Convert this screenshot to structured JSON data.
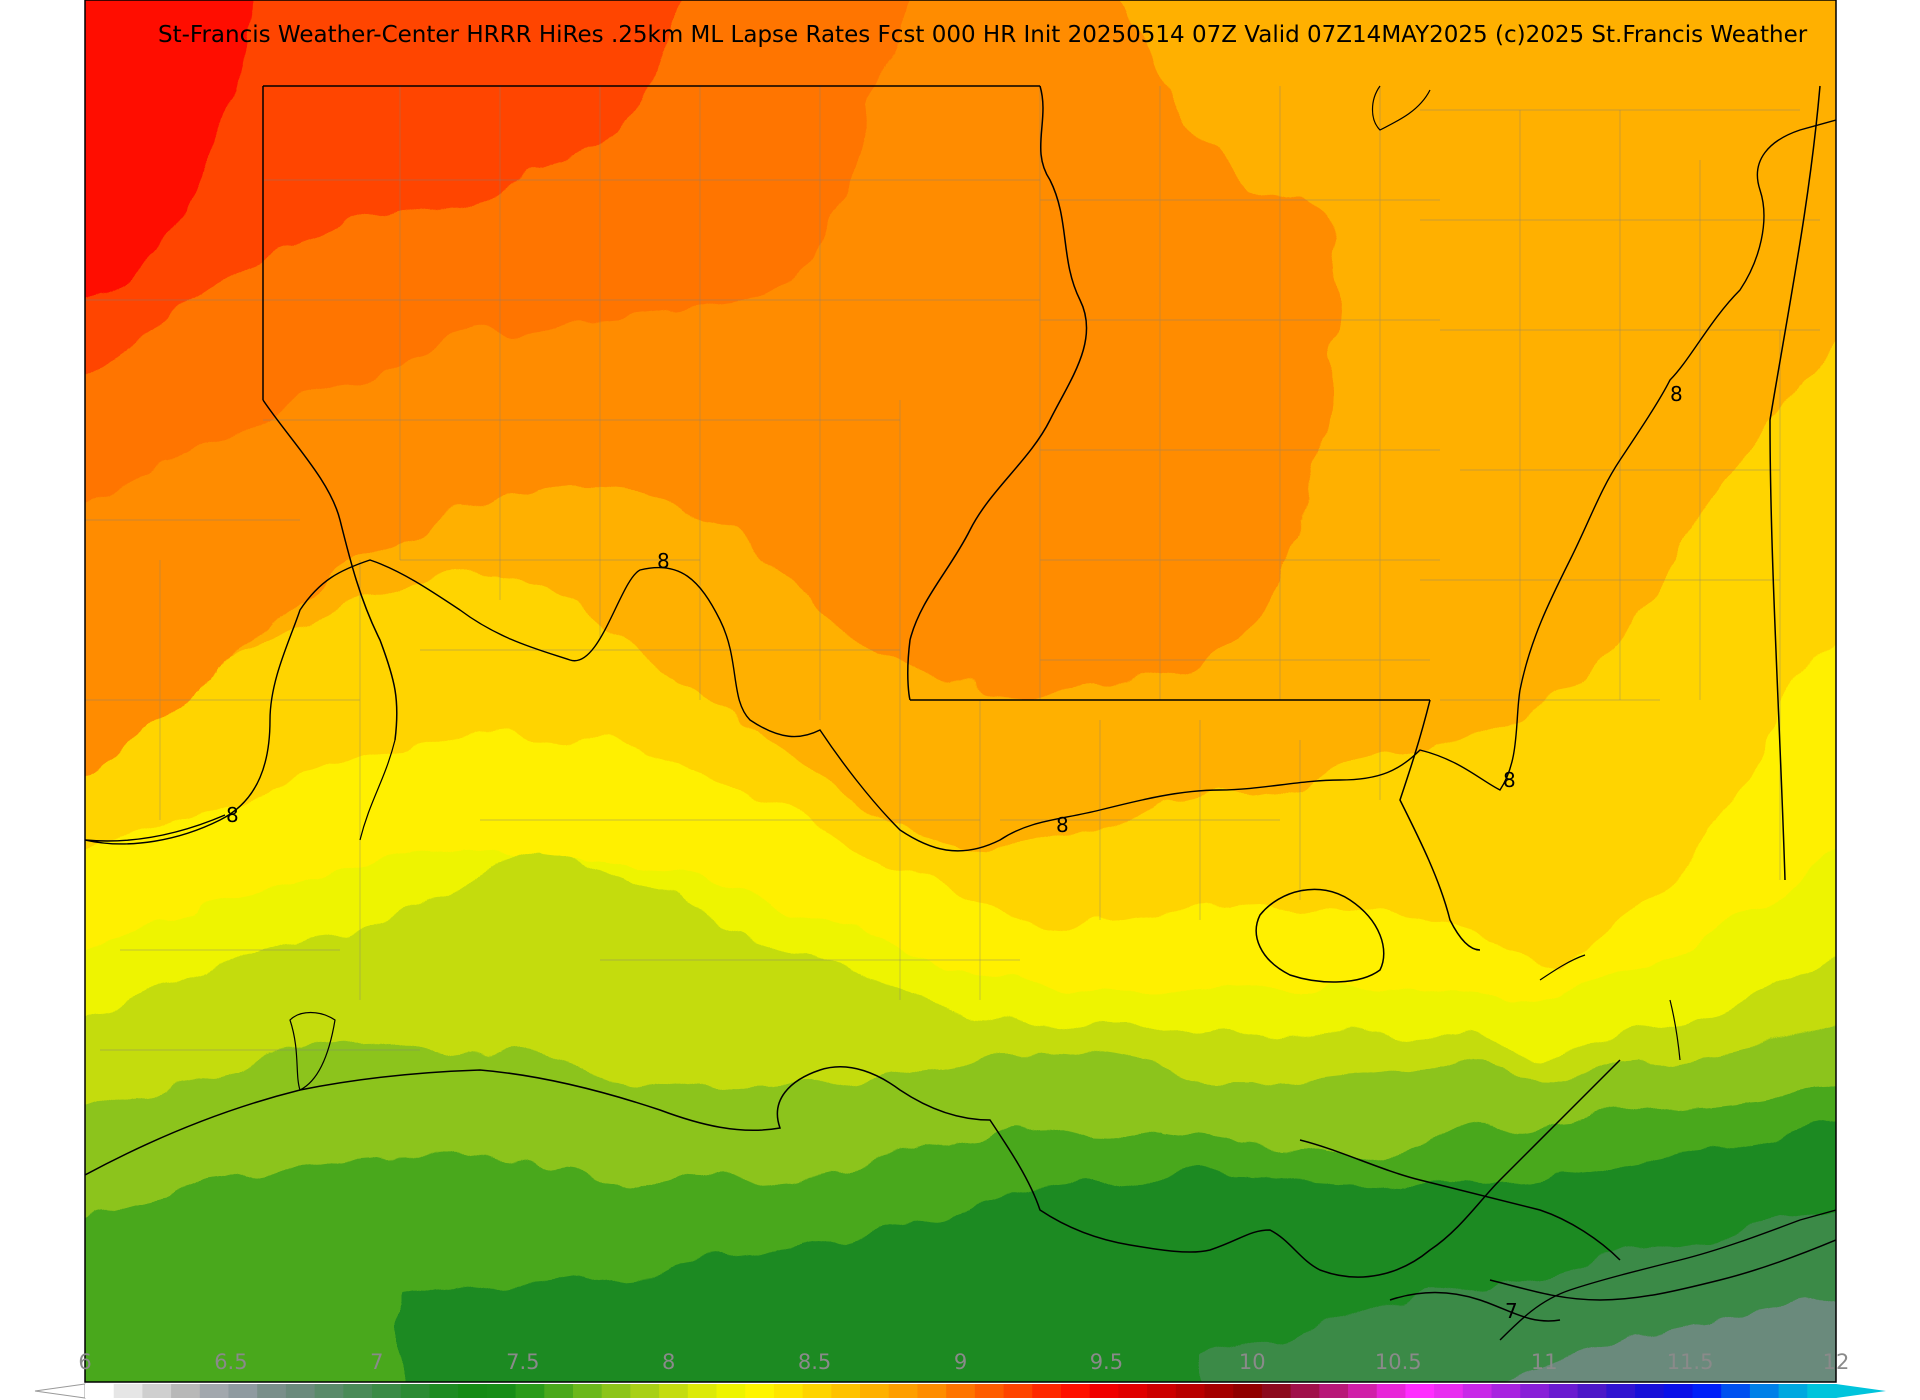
{
  "title": "St-Francis Weather-Center HRRR HiRes .25km ML Lapse Rates  Fcst 000 HR Init 20250514 07Z  Valid 07Z14MAY2025    (c)2025 St.Francis Weather",
  "contour_labels": [
    "8",
    "8",
    "8",
    "8",
    "8",
    "8",
    "7"
  ],
  "colorbar": {
    "min": 6,
    "max": 12,
    "tick_labels": [
      "6",
      "6.5",
      "7",
      "7.5",
      "8",
      "8.5",
      "9",
      "9.5",
      "10",
      "10.5",
      "11",
      "11.5",
      "12"
    ],
    "colors": [
      "#ffffff",
      "#e6e6e6",
      "#cfcfcf",
      "#b8b8b8",
      "#a2a7ad",
      "#8f9aa0",
      "#7a8f8a",
      "#6b8a7c",
      "#5a8a6a",
      "#4a8a58",
      "#3b8a46",
      "#2c8a34",
      "#1e8a22",
      "#158a15",
      "#178c17",
      "#2a9a1a",
      "#4aa81c",
      "#6bb81c",
      "#8cc41a",
      "#a8d016",
      "#c4dc10",
      "#dcea08",
      "#eef400",
      "#fff500",
      "#ffe600",
      "#ffd400",
      "#ffc200",
      "#ffb000",
      "#ff9e00",
      "#ff8c00",
      "#ff7400",
      "#ff5c00",
      "#ff4400",
      "#ff2800",
      "#ff1000",
      "#f00000",
      "#e00000",
      "#cc0000",
      "#b80000",
      "#a40000",
      "#900000",
      "#8c0a1e",
      "#a0104a",
      "#b81878",
      "#d020a8",
      "#e826d8",
      "#ff2cff",
      "#e82cf0",
      "#c828e8",
      "#a824e0",
      "#8820d8",
      "#6a1cd0",
      "#4c18c8",
      "#3014d0",
      "#1810d8",
      "#0a10e8",
      "#0020f8",
      "#0050f0",
      "#0080e8",
      "#00a8e0",
      "#00c4dc"
    ]
  },
  "colors": {
    "background": "#ffffff",
    "contour": "#000000",
    "state_border": "#000000",
    "county_border": "#808080"
  }
}
